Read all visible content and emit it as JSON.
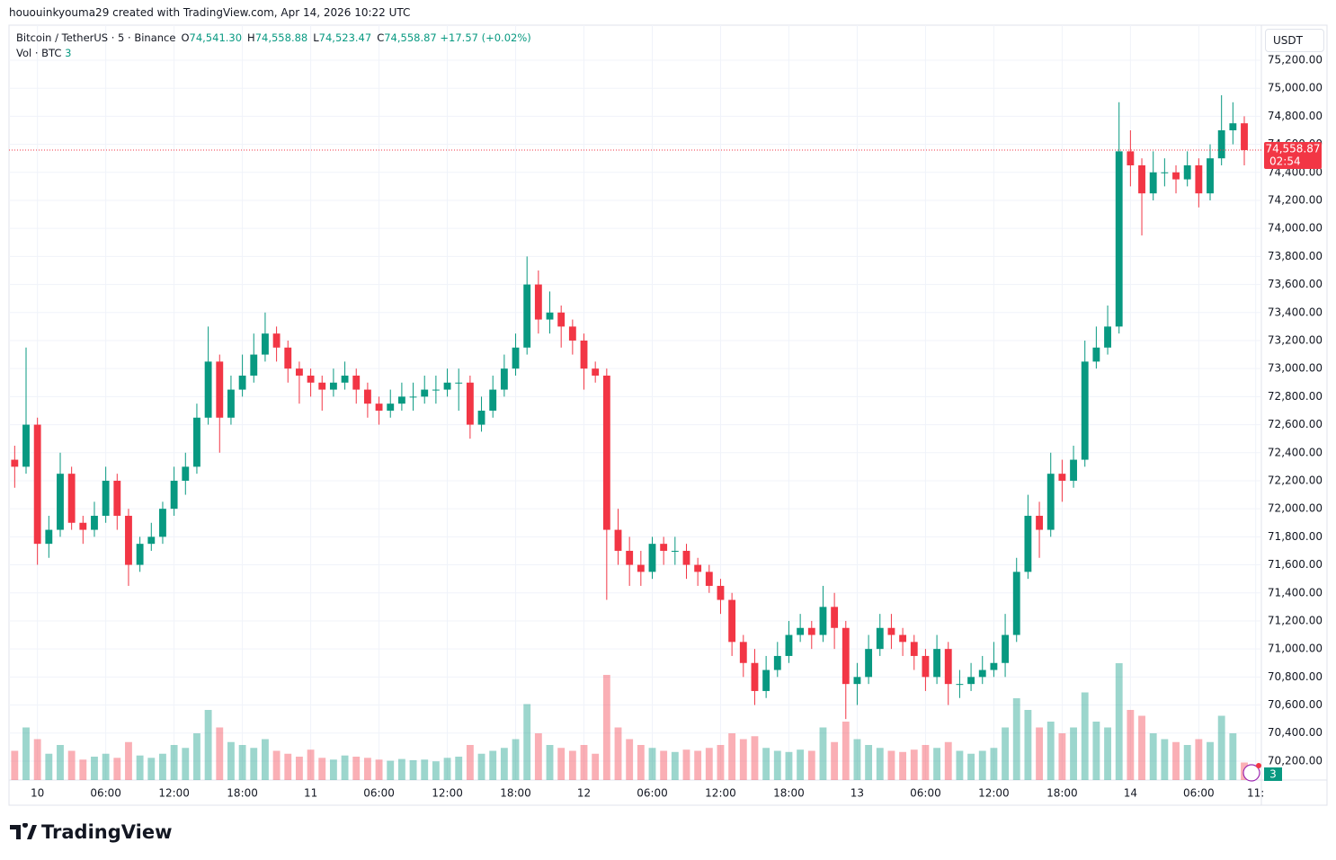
{
  "header": {
    "credit": "hououinkyouma29 created with TradingView.com, Apr 14, 2026 10:22 UTC",
    "symbol": "Bitcoin / TetherUS · 5 · Binance",
    "ohlc": [
      {
        "key": "O",
        "value": "74,541.30"
      },
      {
        "key": "H",
        "value": "74,558.88"
      },
      {
        "key": "L",
        "value": "74,523.47"
      },
      {
        "key": "C",
        "value": "74,558.87"
      }
    ],
    "change": "+17.57 (+0.02%)",
    "volume_label": "Vol · BTC",
    "volume_value": "3",
    "currency": "USDT",
    "last_price_label": "74,558.87",
    "countdown": "02:54",
    "volume_badge": "3"
  },
  "footer": {
    "brand": "TradingView"
  },
  "chart_data": {
    "type": "candlestick",
    "up_color": "#089981",
    "down_color": "#f23645",
    "grid": true,
    "xlim": [
      -2.5,
      107.5
    ],
    "ylim": [
      70065,
      75450
    ],
    "xticks": [
      {
        "value": 0,
        "label": "10"
      },
      {
        "value": 6,
        "label": "06:00"
      },
      {
        "value": 12,
        "label": "12:00"
      },
      {
        "value": 18,
        "label": "18:00"
      },
      {
        "value": 24,
        "label": "11"
      },
      {
        "value": 30,
        "label": "06:00"
      },
      {
        "value": 36,
        "label": "12:00"
      },
      {
        "value": 42,
        "label": "18:00"
      },
      {
        "value": 48,
        "label": "12"
      },
      {
        "value": 54,
        "label": "06:00"
      },
      {
        "value": 60,
        "label": "12:00"
      },
      {
        "value": 66,
        "label": "18:00"
      },
      {
        "value": 72,
        "label": "13"
      },
      {
        "value": 78,
        "label": "06:00"
      },
      {
        "value": 84,
        "label": "12:00"
      },
      {
        "value": 90,
        "label": "18:00"
      },
      {
        "value": 96,
        "label": "14"
      },
      {
        "value": 102,
        "label": "06:00"
      },
      {
        "value": 107,
        "label": "11:"
      }
    ],
    "yticks": [
      {
        "value": 70200,
        "label": "70,200.00"
      },
      {
        "value": 70400,
        "label": "70,400.00"
      },
      {
        "value": 70600,
        "label": "70,600.00"
      },
      {
        "value": 70800,
        "label": "70,800.00"
      },
      {
        "value": 71000,
        "label": "71,000.00"
      },
      {
        "value": 71200,
        "label": "71,200.00"
      },
      {
        "value": 71400,
        "label": "71,400.00"
      },
      {
        "value": 71600,
        "label": "71,600.00"
      },
      {
        "value": 71800,
        "label": "71,800.00"
      },
      {
        "value": 72000,
        "label": "72,000.00"
      },
      {
        "value": 72200,
        "label": "72,200.00"
      },
      {
        "value": 72400,
        "label": "72,400.00"
      },
      {
        "value": 72600,
        "label": "72,600.00"
      },
      {
        "value": 72800,
        "label": "72,800.00"
      },
      {
        "value": 73000,
        "label": "73,000.00"
      },
      {
        "value": 73200,
        "label": "73,200.00"
      },
      {
        "value": 73400,
        "label": "73,400.00"
      },
      {
        "value": 73600,
        "label": "73,600.00"
      },
      {
        "value": 73800,
        "label": "73,800.00"
      },
      {
        "value": 74000,
        "label": "74,000.00"
      },
      {
        "value": 74200,
        "label": "74,200.00"
      },
      {
        "value": 74400,
        "label": "74,400.00"
      },
      {
        "value": 74600,
        "label": "74,600.00"
      },
      {
        "value": 74800,
        "label": "74,800.00"
      },
      {
        "value": 75000,
        "label": "75,000.00"
      },
      {
        "value": 75200,
        "label": "75,200.00"
      }
    ],
    "x": [
      -2,
      -1,
      0,
      1,
      2,
      3,
      4,
      5,
      6,
      7,
      8,
      9,
      10,
      11,
      12,
      13,
      14,
      15,
      16,
      17,
      18,
      19,
      20,
      21,
      22,
      23,
      24,
      25,
      26,
      27,
      28,
      29,
      30,
      31,
      32,
      33,
      34,
      35,
      36,
      37,
      38,
      39,
      40,
      41,
      42,
      43,
      44,
      45,
      46,
      47,
      48,
      49,
      50,
      51,
      52,
      53,
      54,
      55,
      56,
      57,
      58,
      59,
      60,
      61,
      62,
      63,
      64,
      65,
      66,
      67,
      68,
      69,
      70,
      71,
      72,
      73,
      74,
      75,
      76,
      77,
      78,
      79,
      80,
      81,
      82,
      83,
      84,
      85,
      86,
      87,
      88,
      89,
      90,
      91,
      92,
      93,
      94,
      95,
      96,
      97,
      98,
      99,
      100,
      101,
      102,
      103,
      104,
      105,
      106
    ],
    "open": [
      72350,
      72300,
      72600,
      71750,
      71850,
      72250,
      71900,
      71850,
      71950,
      72200,
      71950,
      71600,
      71750,
      71800,
      72000,
      72200,
      72300,
      72650,
      73050,
      72650,
      72850,
      72950,
      73100,
      73250,
      73150,
      73000,
      72950,
      72900,
      72850,
      72900,
      72950,
      72850,
      72750,
      72700,
      72750,
      72800,
      72800,
      72850,
      72850,
      72900,
      72900,
      72600,
      72700,
      72850,
      73000,
      73150,
      73600,
      73350,
      73400,
      73300,
      73200,
      73000,
      72950,
      71850,
      71700,
      71600,
      71550,
      71750,
      71700,
      71700,
      71600,
      71550,
      71450,
      71350,
      71050,
      70900,
      70700,
      70850,
      70950,
      71100,
      71150,
      71100,
      71300,
      71150,
      70750,
      70800,
      71000,
      71150,
      71100,
      71050,
      70950,
      70800,
      71000,
      70750,
      70750,
      70800,
      70850,
      70900,
      71100,
      71550,
      71950,
      71850,
      72250,
      72200,
      72350,
      73050,
      73150,
      73300,
      74550,
      74450,
      74250,
      74400,
      74400,
      74350,
      74450,
      74250,
      74500,
      74700,
      74750
    ],
    "high": [
      72450,
      73150,
      72650,
      71950,
      72400,
      72300,
      71950,
      72050,
      72300,
      72250,
      72000,
      71800,
      71900,
      72050,
      72300,
      72400,
      72750,
      73300,
      73100,
      72950,
      73100,
      73250,
      73400,
      73300,
      73200,
      73050,
      73000,
      72950,
      73000,
      73050,
      73000,
      72900,
      72800,
      72850,
      72900,
      72900,
      72950,
      72950,
      73000,
      73000,
      72950,
      72800,
      72950,
      73100,
      73250,
      73800,
      73700,
      73550,
      73450,
      73350,
      73250,
      73050,
      73000,
      72000,
      71800,
      71700,
      71800,
      71800,
      71800,
      71750,
      71650,
      71600,
      71500,
      71400,
      71100,
      71000,
      70950,
      71050,
      71200,
      71250,
      71200,
      71450,
      71400,
      71200,
      70900,
      71100,
      71250,
      71250,
      71150,
      71100,
      71000,
      71100,
      71050,
      70850,
      70900,
      70950,
      71050,
      71250,
      71650,
      72100,
      72050,
      72400,
      72350,
      72450,
      73200,
      73300,
      73450,
      74900,
      74700,
      74500,
      74550,
      74500,
      74450,
      74550,
      74500,
      74600,
      74950,
      74900,
      74800
    ],
    "low": [
      72150,
      72250,
      71600,
      71650,
      71800,
      71850,
      71750,
      71800,
      71900,
      71850,
      71450,
      71550,
      71700,
      71750,
      71950,
      72100,
      72250,
      72600,
      72400,
      72600,
      72800,
      72900,
      73050,
      73050,
      72900,
      72750,
      72800,
      72700,
      72800,
      72850,
      72750,
      72650,
      72600,
      72650,
      72700,
      72700,
      72750,
      72750,
      72800,
      72700,
      72500,
      72550,
      72650,
      72800,
      72950,
      73100,
      73250,
      73250,
      73150,
      73100,
      72850,
      72900,
      71350,
      71600,
      71450,
      71450,
      71500,
      71600,
      71600,
      71500,
      71450,
      71400,
      71250,
      70950,
      70800,
      70600,
      70650,
      70800,
      70900,
      71050,
      71000,
      71050,
      71000,
      70500,
      70600,
      70750,
      70950,
      71000,
      70950,
      70850,
      70700,
      70750,
      70600,
      70650,
      70700,
      70750,
      70800,
      70800,
      71050,
      71500,
      71650,
      71800,
      72050,
      72150,
      72300,
      73000,
      73100,
      73250,
      74300,
      73950,
      74200,
      74300,
      74250,
      74300,
      74150,
      74200,
      74450,
      74600,
      74450
    ],
    "close": [
      72300,
      72600,
      71750,
      71850,
      72250,
      71900,
      71850,
      71950,
      72200,
      71950,
      71600,
      71750,
      71800,
      72000,
      72200,
      72300,
      72650,
      73050,
      72650,
      72850,
      72950,
      73100,
      73250,
      73150,
      73000,
      72950,
      72900,
      72850,
      72900,
      72950,
      72850,
      72750,
      72700,
      72750,
      72800,
      72800,
      72850,
      72850,
      72900,
      72900,
      72600,
      72700,
      72850,
      73000,
      73150,
      73600,
      73350,
      73400,
      73300,
      73200,
      73000,
      72950,
      71850,
      71700,
      71600,
      71550,
      71750,
      71700,
      71700,
      71600,
      71550,
      71450,
      71350,
      71050,
      70900,
      70700,
      70850,
      70950,
      71100,
      71150,
      71100,
      71300,
      71150,
      70750,
      70800,
      71000,
      71150,
      71100,
      71050,
      70950,
      70800,
      71000,
      70750,
      70750,
      70800,
      70850,
      70900,
      71100,
      71550,
      71950,
      71850,
      72250,
      72200,
      72350,
      73050,
      73150,
      73300,
      74550,
      74450,
      74250,
      74400,
      74400,
      74350,
      74450,
      74250,
      74500,
      74700,
      74750,
      74558.87
    ],
    "volume": [
      500,
      900,
      700,
      450,
      600,
      500,
      350,
      400,
      450,
      380,
      650,
      420,
      380,
      450,
      600,
      550,
      800,
      1200,
      900,
      650,
      600,
      550,
      700,
      500,
      450,
      400,
      520,
      380,
      350,
      420,
      400,
      380,
      350,
      330,
      360,
      340,
      350,
      320,
      380,
      400,
      600,
      450,
      500,
      550,
      700,
      1300,
      800,
      600,
      550,
      500,
      600,
      450,
      1800,
      900,
      700,
      600,
      550,
      500,
      480,
      520,
      500,
      550,
      600,
      800,
      700,
      750,
      550,
      500,
      480,
      520,
      500,
      900,
      650,
      1000,
      700,
      600,
      550,
      500,
      480,
      520,
      600,
      550,
      650,
      500,
      450,
      500,
      550,
      900,
      1400,
      1200,
      900,
      1000,
      800,
      900,
      1500,
      1000,
      900,
      2000,
      1200,
      1100,
      800,
      700,
      650,
      600,
      700,
      650,
      1100,
      800,
      300
    ]
  }
}
